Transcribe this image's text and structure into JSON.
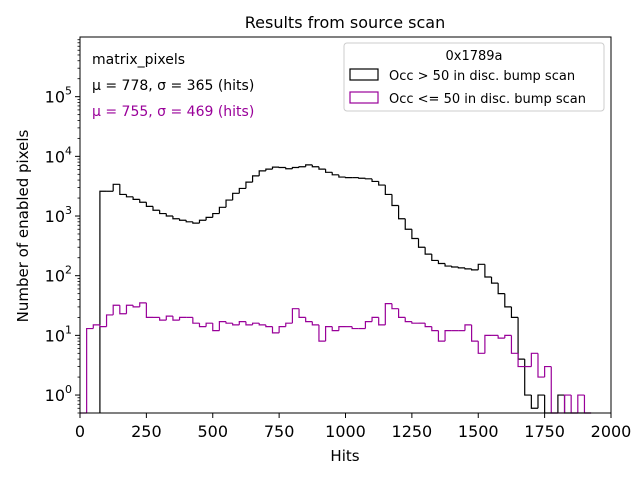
{
  "chart_data": {
    "type": "histogram",
    "title": "Results from source scan",
    "xlabel": "Hits",
    "ylabel": "Number of enabled pixels",
    "xlim": [
      0,
      2000
    ],
    "ylim": [
      0.5,
      1000000
    ],
    "yscale": "log",
    "grid": false,
    "xticks": [
      {
        "value": 0,
        "label": "0"
      },
      {
        "value": 250,
        "label": "250"
      },
      {
        "value": 500,
        "label": "500"
      },
      {
        "value": 750,
        "label": "750"
      },
      {
        "value": 1000,
        "label": "1000"
      },
      {
        "value": 1250,
        "label": "1250"
      },
      {
        "value": 1500,
        "label": "1500"
      },
      {
        "value": 1750,
        "label": "1750"
      },
      {
        "value": 2000,
        "label": "2000"
      }
    ],
    "yticks": [
      {
        "value": 1,
        "base": "10",
        "exp": "0"
      },
      {
        "value": 10,
        "base": "10",
        "exp": "1"
      },
      {
        "value": 100,
        "base": "10",
        "exp": "2"
      },
      {
        "value": 1000,
        "base": "10",
        "exp": "3"
      },
      {
        "value": 10000,
        "base": "10",
        "exp": "4"
      },
      {
        "value": 100000,
        "base": "10",
        "exp": "5"
      }
    ],
    "annotations": {
      "matrix": "matrix_pixels",
      "stats_high": "μ = 778, σ = 365 (hits)",
      "stats_low": "μ = 755, σ = 469 (hits)"
    },
    "legend": {
      "placement": "top-right",
      "title": "0x1789a"
    },
    "bin_width": 25,
    "series": [
      {
        "name": "Occ > 50 in disc. bump scan",
        "color": "#000000",
        "bins": [
          {
            "x0": 75,
            "y": 2600
          },
          {
            "x0": 100,
            "y": 2600
          },
          {
            "x0": 125,
            "y": 3400
          },
          {
            "x0": 150,
            "y": 2300
          },
          {
            "x0": 175,
            "y": 2100
          },
          {
            "x0": 200,
            "y": 1900
          },
          {
            "x0": 225,
            "y": 1700
          },
          {
            "x0": 250,
            "y": 1450
          },
          {
            "x0": 275,
            "y": 1250
          },
          {
            "x0": 300,
            "y": 1100
          },
          {
            "x0": 325,
            "y": 1000
          },
          {
            "x0": 350,
            "y": 900
          },
          {
            "x0": 375,
            "y": 850
          },
          {
            "x0": 400,
            "y": 800
          },
          {
            "x0": 425,
            "y": 760
          },
          {
            "x0": 450,
            "y": 850
          },
          {
            "x0": 475,
            "y": 950
          },
          {
            "x0": 500,
            "y": 1100
          },
          {
            "x0": 525,
            "y": 1400
          },
          {
            "x0": 550,
            "y": 1850
          },
          {
            "x0": 575,
            "y": 2400
          },
          {
            "x0": 600,
            "y": 2900
          },
          {
            "x0": 625,
            "y": 3700
          },
          {
            "x0": 650,
            "y": 4700
          },
          {
            "x0": 675,
            "y": 5700
          },
          {
            "x0": 700,
            "y": 6100
          },
          {
            "x0": 725,
            "y": 6600
          },
          {
            "x0": 750,
            "y": 6500
          },
          {
            "x0": 775,
            "y": 6200
          },
          {
            "x0": 800,
            "y": 6500
          },
          {
            "x0": 825,
            "y": 6700
          },
          {
            "x0": 850,
            "y": 7200
          },
          {
            "x0": 875,
            "y": 6700
          },
          {
            "x0": 900,
            "y": 6100
          },
          {
            "x0": 925,
            "y": 5400
          },
          {
            "x0": 950,
            "y": 4900
          },
          {
            "x0": 975,
            "y": 4500
          },
          {
            "x0": 1000,
            "y": 4400
          },
          {
            "x0": 1025,
            "y": 4400
          },
          {
            "x0": 1050,
            "y": 4300
          },
          {
            "x0": 1075,
            "y": 4200
          },
          {
            "x0": 1100,
            "y": 3800
          },
          {
            "x0": 1125,
            "y": 3300
          },
          {
            "x0": 1150,
            "y": 2300
          },
          {
            "x0": 1175,
            "y": 1500
          },
          {
            "x0": 1200,
            "y": 900
          },
          {
            "x0": 1225,
            "y": 600
          },
          {
            "x0": 1250,
            "y": 420
          },
          {
            "x0": 1275,
            "y": 300
          },
          {
            "x0": 1300,
            "y": 230
          },
          {
            "x0": 1325,
            "y": 180
          },
          {
            "x0": 1350,
            "y": 160
          },
          {
            "x0": 1375,
            "y": 145
          },
          {
            "x0": 1400,
            "y": 140
          },
          {
            "x0": 1425,
            "y": 135
          },
          {
            "x0": 1450,
            "y": 130
          },
          {
            "x0": 1475,
            "y": 125
          },
          {
            "x0": 1500,
            "y": 155
          },
          {
            "x0": 1525,
            "y": 95
          },
          {
            "x0": 1550,
            "y": 75
          },
          {
            "x0": 1575,
            "y": 50
          },
          {
            "x0": 1600,
            "y": 30
          },
          {
            "x0": 1625,
            "y": 20
          },
          {
            "x0": 1650,
            "y": 4
          },
          {
            "x0": 1675,
            "y": 1
          },
          {
            "x0": 1700,
            "y": 0.6
          },
          {
            "x0": 1725,
            "y": 1
          },
          {
            "x0": 1750,
            "y": 0
          },
          {
            "x0": 1775,
            "y": 0
          },
          {
            "x0": 1800,
            "y": 1
          },
          {
            "x0": 1825,
            "y": 0
          },
          {
            "x0": 1850,
            "y": 0
          },
          {
            "x0": 1875,
            "y": 0
          },
          {
            "x0": 1900,
            "y": 0
          }
        ]
      },
      {
        "name": "Occ <= 50 in disc. bump scan",
        "color": "#990099",
        "bins": [
          {
            "x0": 0,
            "y": 0
          },
          {
            "x0": 25,
            "y": 13
          },
          {
            "x0": 50,
            "y": 15
          },
          {
            "x0": 75,
            "y": 14
          },
          {
            "x0": 100,
            "y": 22
          },
          {
            "x0": 125,
            "y": 32
          },
          {
            "x0": 150,
            "y": 23
          },
          {
            "x0": 175,
            "y": 32
          },
          {
            "x0": 200,
            "y": 30
          },
          {
            "x0": 225,
            "y": 35
          },
          {
            "x0": 250,
            "y": 20
          },
          {
            "x0": 275,
            "y": 20
          },
          {
            "x0": 300,
            "y": 18
          },
          {
            "x0": 325,
            "y": 21
          },
          {
            "x0": 350,
            "y": 18
          },
          {
            "x0": 375,
            "y": 20
          },
          {
            "x0": 400,
            "y": 20
          },
          {
            "x0": 425,
            "y": 16
          },
          {
            "x0": 450,
            "y": 14
          },
          {
            "x0": 475,
            "y": 16
          },
          {
            "x0": 500,
            "y": 12
          },
          {
            "x0": 525,
            "y": 17
          },
          {
            "x0": 550,
            "y": 16
          },
          {
            "x0": 575,
            "y": 15
          },
          {
            "x0": 600,
            "y": 17
          },
          {
            "x0": 625,
            "y": 15
          },
          {
            "x0": 650,
            "y": 16
          },
          {
            "x0": 675,
            "y": 15
          },
          {
            "x0": 700,
            "y": 14
          },
          {
            "x0": 725,
            "y": 11
          },
          {
            "x0": 750,
            "y": 14
          },
          {
            "x0": 775,
            "y": 16
          },
          {
            "x0": 800,
            "y": 28
          },
          {
            "x0": 825,
            "y": 20
          },
          {
            "x0": 850,
            "y": 17
          },
          {
            "x0": 875,
            "y": 15
          },
          {
            "x0": 900,
            "y": 8
          },
          {
            "x0": 925,
            "y": 14
          },
          {
            "x0": 950,
            "y": 12
          },
          {
            "x0": 975,
            "y": 14
          },
          {
            "x0": 1000,
            "y": 14
          },
          {
            "x0": 1025,
            "y": 13
          },
          {
            "x0": 1050,
            "y": 13
          },
          {
            "x0": 1075,
            "y": 17
          },
          {
            "x0": 1100,
            "y": 20
          },
          {
            "x0": 1125,
            "y": 15
          },
          {
            "x0": 1150,
            "y": 34
          },
          {
            "x0": 1175,
            "y": 28
          },
          {
            "x0": 1200,
            "y": 20
          },
          {
            "x0": 1225,
            "y": 17
          },
          {
            "x0": 1250,
            "y": 16
          },
          {
            "x0": 1275,
            "y": 16
          },
          {
            "x0": 1300,
            "y": 14
          },
          {
            "x0": 1325,
            "y": 12
          },
          {
            "x0": 1350,
            "y": 8
          },
          {
            "x0": 1375,
            "y": 12
          },
          {
            "x0": 1400,
            "y": 12
          },
          {
            "x0": 1425,
            "y": 12
          },
          {
            "x0": 1450,
            "y": 15
          },
          {
            "x0": 1475,
            "y": 8
          },
          {
            "x0": 1500,
            "y": 5
          },
          {
            "x0": 1525,
            "y": 10
          },
          {
            "x0": 1550,
            "y": 10
          },
          {
            "x0": 1575,
            "y": 9
          },
          {
            "x0": 1600,
            "y": 10
          },
          {
            "x0": 1625,
            "y": 5
          },
          {
            "x0": 1650,
            "y": 3
          },
          {
            "x0": 1675,
            "y": 3
          },
          {
            "x0": 1700,
            "y": 5
          },
          {
            "x0": 1725,
            "y": 2
          },
          {
            "x0": 1750,
            "y": 3
          },
          {
            "x0": 1775,
            "y": 0
          },
          {
            "x0": 1800,
            "y": 0
          },
          {
            "x0": 1825,
            "y": 1
          },
          {
            "x0": 1850,
            "y": 0
          },
          {
            "x0": 1875,
            "y": 1
          },
          {
            "x0": 1900,
            "y": 0
          }
        ]
      }
    ]
  }
}
